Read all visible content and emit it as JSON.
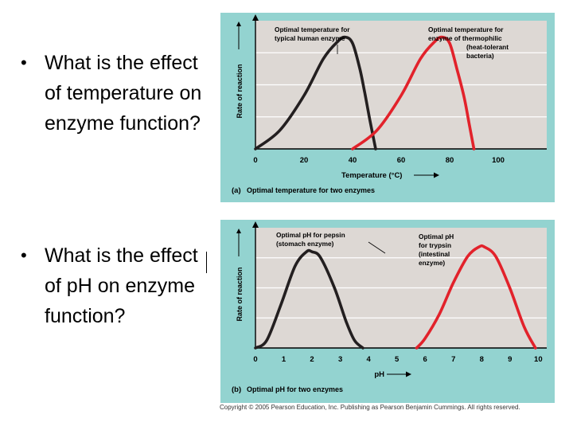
{
  "bullets": [
    "What is the effect of temperature on enzyme function?",
    "What is the effect of pH on enzyme function?"
  ],
  "copyright": "Copyright © 2005 Pearson Education, Inc. Publishing as Pearson Benjamin Cummings. All rights reserved.",
  "colors": {
    "panel_bg": "#93d3d0",
    "plot_bg": "#ddd8d4",
    "human": "#231f20",
    "red": "#e2222b",
    "gridline": "#ffffff"
  },
  "chart_data": [
    {
      "type": "line",
      "panel_letter": "(a)",
      "title": "Optimal temperature for two enzymes",
      "xlabel": "Temperature (°C)",
      "ylabel": "Rate of reaction",
      "xlim": [
        0,
        120
      ],
      "ylim": [
        0,
        1.25
      ],
      "xticks": [
        "0",
        "20",
        "40",
        "60",
        "80",
        "100"
      ],
      "xtick_values": [
        0,
        20,
        40,
        60,
        80,
        100
      ],
      "grid": true,
      "series": [
        {
          "name": "typical human enzyme",
          "color": "#231f20",
          "x": [
            0,
            10,
            20,
            28,
            34,
            37,
            40,
            43,
            45,
            47,
            49.5
          ],
          "y": [
            0,
            0.18,
            0.52,
            0.88,
            1.05,
            1.09,
            1.03,
            0.78,
            0.55,
            0.3,
            0
          ]
        },
        {
          "name": "enzyme of thermophilic (heat-tolerant) bacteria",
          "color": "#e2222b",
          "x": [
            40,
            50,
            60,
            68,
            74,
            77,
            80,
            83,
            86,
            88,
            90
          ],
          "y": [
            0,
            0.18,
            0.52,
            0.88,
            1.05,
            1.09,
            1.03,
            0.78,
            0.5,
            0.25,
            0
          ]
        }
      ],
      "annotations": [
        {
          "text": [
            "Optimal temperature for",
            "typical human enzyme"
          ]
        },
        {
          "text": [
            "Optimal temperature for",
            "enzyme of thermophilic",
            "(heat-tolerant",
            "bacteria)"
          ]
        }
      ]
    },
    {
      "type": "line",
      "panel_letter": "(b)",
      "title": "Optimal pH for two enzymes",
      "xlabel": "pH",
      "ylabel": "Rate of reaction",
      "xlim": [
        0,
        10.3
      ],
      "ylim": [
        0,
        1.25
      ],
      "xticks": [
        "0",
        "1",
        "2",
        "3",
        "4",
        "5",
        "6",
        "7",
        "8",
        "9",
        "10"
      ],
      "xtick_values": [
        0,
        1,
        2,
        3,
        4,
        5,
        6,
        7,
        8,
        9,
        10
      ],
      "grid": true,
      "series": [
        {
          "name": "pepsin (stomach enzyme)",
          "color": "#231f20",
          "x": [
            0,
            0.4,
            0.9,
            1.4,
            1.8,
            2.0,
            2.3,
            2.8,
            3.2,
            3.5,
            3.8
          ],
          "y": [
            0,
            0.08,
            0.45,
            0.85,
            1.0,
            1.0,
            0.94,
            0.62,
            0.28,
            0.08,
            0
          ]
        },
        {
          "name": "trypsin (intestinal enzyme)",
          "color": "#e2222b",
          "x": [
            5.7,
            6.0,
            6.5,
            7.0,
            7.5,
            7.9,
            8.1,
            8.5,
            9.0,
            9.5,
            9.9
          ],
          "y": [
            0,
            0.1,
            0.35,
            0.68,
            0.95,
            1.05,
            1.05,
            0.95,
            0.62,
            0.22,
            0
          ]
        }
      ],
      "annotations": [
        {
          "text": [
            "Optimal pH for pepsin",
            "(stomach enzyme)"
          ]
        },
        {
          "text": [
            "Optimal pH",
            "for trypsin",
            "(intestinal",
            "enzyme)"
          ]
        }
      ]
    }
  ]
}
